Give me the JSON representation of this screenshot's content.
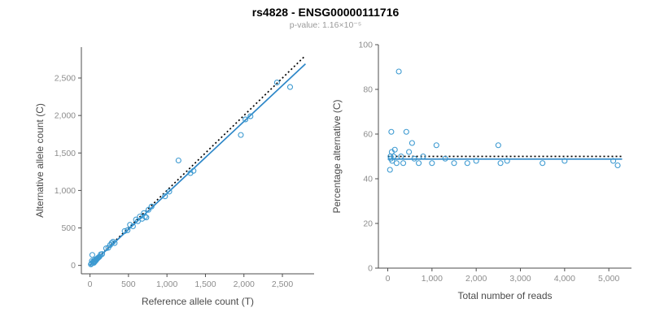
{
  "header": {
    "title": "rs4828 - ENSG00000111716",
    "subtitle": "p-value: 1.16×10⁻⁵"
  },
  "colors": {
    "point": "#3d9ad1",
    "fit_line": "#2d87c8",
    "identity_line": "#000000",
    "axis_line": "#4d4d4d",
    "tick_text": "#8c8c8c",
    "axis_label_text": "#4a4a4a"
  },
  "chart_data": [
    {
      "type": "scatter",
      "title": "",
      "xlabel": "Reference allele count (T)",
      "ylabel": "Alternative allele count (C)",
      "xlim": [
        0,
        2800
      ],
      "ylim": [
        0,
        2800
      ],
      "xticks": [
        0,
        500,
        1000,
        1500,
        2000,
        2500
      ],
      "xtick_labels": [
        "0",
        "500",
        "1,000",
        "1,500",
        "2,000",
        "2,500"
      ],
      "yticks": [
        0,
        500,
        1000,
        1500,
        2000,
        2500
      ],
      "ytick_labels": [
        "0",
        "500",
        "1,000",
        "1,500",
        "2,000",
        "2,500"
      ],
      "grid": false,
      "legend": "none",
      "points": [
        [
          12,
          14
        ],
        [
          20,
          25
        ],
        [
          25,
          60
        ],
        [
          30,
          140
        ],
        [
          38,
          40
        ],
        [
          45,
          55
        ],
        [
          50,
          35
        ],
        [
          58,
          62
        ],
        [
          65,
          52
        ],
        [
          72,
          78
        ],
        [
          80,
          70
        ],
        [
          88,
          85
        ],
        [
          95,
          92
        ],
        [
          105,
          100
        ],
        [
          112,
          108
        ],
        [
          125,
          118
        ],
        [
          140,
          148
        ],
        [
          158,
          152
        ],
        [
          210,
          228
        ],
        [
          238,
          236
        ],
        [
          262,
          272
        ],
        [
          282,
          300
        ],
        [
          300,
          316
        ],
        [
          320,
          298
        ],
        [
          450,
          458
        ],
        [
          488,
          470
        ],
        [
          520,
          542
        ],
        [
          558,
          522
        ],
        [
          598,
          612
        ],
        [
          622,
          590
        ],
        [
          648,
          652
        ],
        [
          678,
          622
        ],
        [
          700,
          698
        ],
        [
          715,
          652
        ],
        [
          732,
          640
        ],
        [
          760,
          742
        ],
        [
          800,
          786
        ],
        [
          975,
          922
        ],
        [
          1030,
          985
        ],
        [
          1150,
          1400
        ],
        [
          1305,
          1232
        ],
        [
          1345,
          1262
        ],
        [
          1960,
          1740
        ],
        [
          2020,
          1948
        ],
        [
          2085,
          1990
        ],
        [
          2430,
          2440
        ],
        [
          2600,
          2380
        ]
      ],
      "lines": [
        {
          "name": "identity",
          "style": "dotted",
          "color_key": "identity_line",
          "x": [
            0,
            2800
          ],
          "y": [
            0,
            2800
          ]
        },
        {
          "name": "fit",
          "style": "solid",
          "color_key": "fit_line",
          "x": [
            0,
            2800
          ],
          "y": [
            0,
            2688
          ]
        }
      ]
    },
    {
      "type": "scatter",
      "title": "",
      "xlabel": "Total number of reads",
      "ylabel": "Percentage alternative (C)",
      "xlim": [
        0,
        5300
      ],
      "ylim": [
        0,
        100
      ],
      "xticks": [
        0,
        1000,
        2000,
        3000,
        4000,
        5000
      ],
      "xtick_labels": [
        "0",
        "1,000",
        "2,000",
        "3,000",
        "4,000",
        "5,000"
      ],
      "yticks": [
        0,
        20,
        40,
        60,
        80,
        100
      ],
      "ytick_labels": [
        "0",
        "20",
        "40",
        "60",
        "80",
        "100"
      ],
      "grid": false,
      "legend": "none",
      "points": [
        [
          50,
          44
        ],
        [
          60,
          50
        ],
        [
          70,
          49
        ],
        [
          80,
          61
        ],
        [
          90,
          52
        ],
        [
          100,
          48
        ],
        [
          130,
          50
        ],
        [
          160,
          53
        ],
        [
          200,
          47
        ],
        [
          250,
          88
        ],
        [
          300,
          50
        ],
        [
          350,
          47
        ],
        [
          420,
          61
        ],
        [
          480,
          52
        ],
        [
          550,
          56
        ],
        [
          600,
          49
        ],
        [
          700,
          47
        ],
        [
          800,
          50
        ],
        [
          1000,
          47
        ],
        [
          1100,
          55
        ],
        [
          1300,
          49
        ],
        [
          1500,
          47
        ],
        [
          1800,
          47
        ],
        [
          2000,
          48
        ],
        [
          2500,
          55
        ],
        [
          2550,
          47
        ],
        [
          2700,
          48
        ],
        [
          3500,
          47
        ],
        [
          4000,
          48
        ],
        [
          5100,
          48
        ],
        [
          5200,
          46
        ]
      ],
      "lines": [
        {
          "name": "expected",
          "style": "dotted",
          "color_key": "identity_line",
          "x": [
            0,
            5300
          ],
          "y": [
            50,
            50
          ]
        },
        {
          "name": "fit",
          "style": "solid",
          "color_key": "fit_line",
          "x": [
            0,
            5300
          ],
          "y": [
            48.8,
            48.8
          ]
        }
      ]
    }
  ]
}
